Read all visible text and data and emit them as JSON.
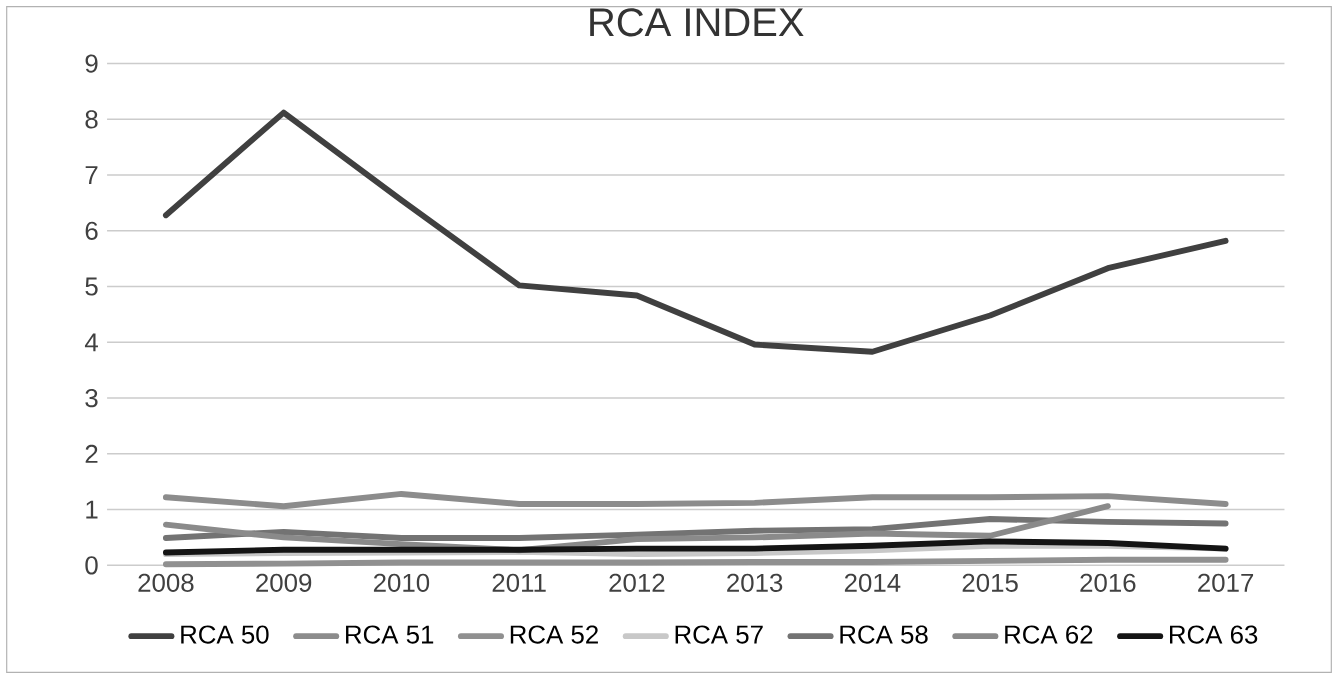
{
  "chart_data": {
    "type": "line",
    "title": "RCA INDEX",
    "categories": [
      "2008",
      "2009",
      "2010",
      "2011",
      "2012",
      "2013",
      "2014",
      "2015",
      "2016",
      "2017"
    ],
    "ylim": [
      0,
      9
    ],
    "yticks": [
      0,
      1,
      2,
      3,
      4,
      5,
      6,
      7,
      8,
      9
    ],
    "grid": "y",
    "legend": "bottom",
    "marker": "none",
    "line_style": "solid",
    "series": [
      {
        "name": "RCA 50",
        "color": "#404040",
        "values": [
          6.28,
          8.12,
          6.55,
          5.02,
          4.84,
          3.96,
          3.83,
          4.48,
          5.33,
          5.82
        ]
      },
      {
        "name": "RCA 51",
        "color": "#8c8c8c",
        "values": [
          1.22,
          1.06,
          1.28,
          1.1,
          1.1,
          1.12,
          1.22,
          1.22,
          1.24,
          1.1
        ]
      },
      {
        "name": "RCA 52",
        "color": "#909090",
        "values": [
          0.02,
          0.03,
          0.05,
          0.05,
          0.05,
          0.06,
          0.06,
          0.08,
          0.1,
          0.1
        ]
      },
      {
        "name": "RCA 57",
        "color": "#c8c8c8",
        "values": [
          0.2,
          0.22,
          0.23,
          0.24,
          0.2,
          0.22,
          0.27,
          0.35,
          0.35,
          0.3
        ]
      },
      {
        "name": "RCA 58",
        "color": "#737373",
        "values": [
          0.49,
          0.6,
          0.49,
          0.49,
          0.55,
          0.62,
          0.65,
          0.83,
          0.78,
          0.75
        ]
      },
      {
        "name": "RCA 62",
        "color": "#8a8a8a",
        "values": [
          0.73,
          0.5,
          0.38,
          0.27,
          0.47,
          0.5,
          0.57,
          0.53,
          1.06,
          null
        ]
      },
      {
        "name": "RCA 63",
        "color": "#141414",
        "values": [
          0.23,
          0.28,
          0.28,
          0.28,
          0.3,
          0.3,
          0.35,
          0.43,
          0.4,
          0.3
        ]
      }
    ]
  }
}
